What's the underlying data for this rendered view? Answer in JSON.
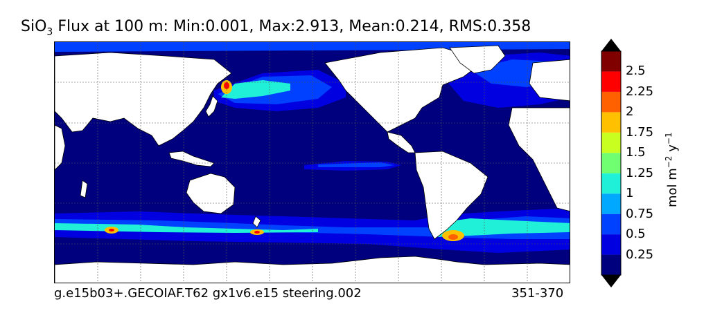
{
  "title": {
    "prefix": "SiO",
    "subscript": "3",
    "rest": " Flux at 100 m: Min:0.001, Max:2.913, Mean:0.214, RMS:0.358"
  },
  "footer": {
    "case_name": "g.e15b03+.GECOIAF.T62 gx1v6.e15 steering.002",
    "years": "351-370"
  },
  "colorbar": {
    "label_main": "mol m",
    "label_exp1": "−2",
    "label_mid": " y",
    "label_exp2": "−1",
    "ticks": [
      "0.25",
      "0.5",
      "0.75",
      "1",
      "1.25",
      "1.5",
      "1.75",
      "2",
      "2.25",
      "2.5"
    ],
    "colors": [
      "#00007f",
      "#0000e0",
      "#0040ff",
      "#00a8ff",
      "#20f0d8",
      "#70ff70",
      "#c8ff20",
      "#ffc000",
      "#ff6000",
      "#ff0000",
      "#800000"
    ],
    "under_color": "#000000",
    "over_color": "#000000"
  },
  "map": {
    "ocean_color": "#00007f",
    "land_color": "#ffffff",
    "grid": "dashed"
  }
}
